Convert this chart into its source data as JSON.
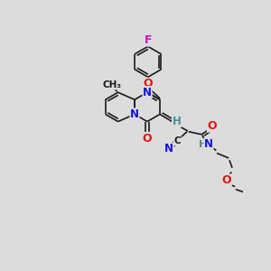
{
  "bg_color": "#dcdcdc",
  "bond_color": "#1a1a1a",
  "atom_colors": {
    "N": "#1414e0",
    "O": "#e01414",
    "F": "#cc14cc",
    "C": "#1a1a1a",
    "H": "#4a8f8f"
  }
}
